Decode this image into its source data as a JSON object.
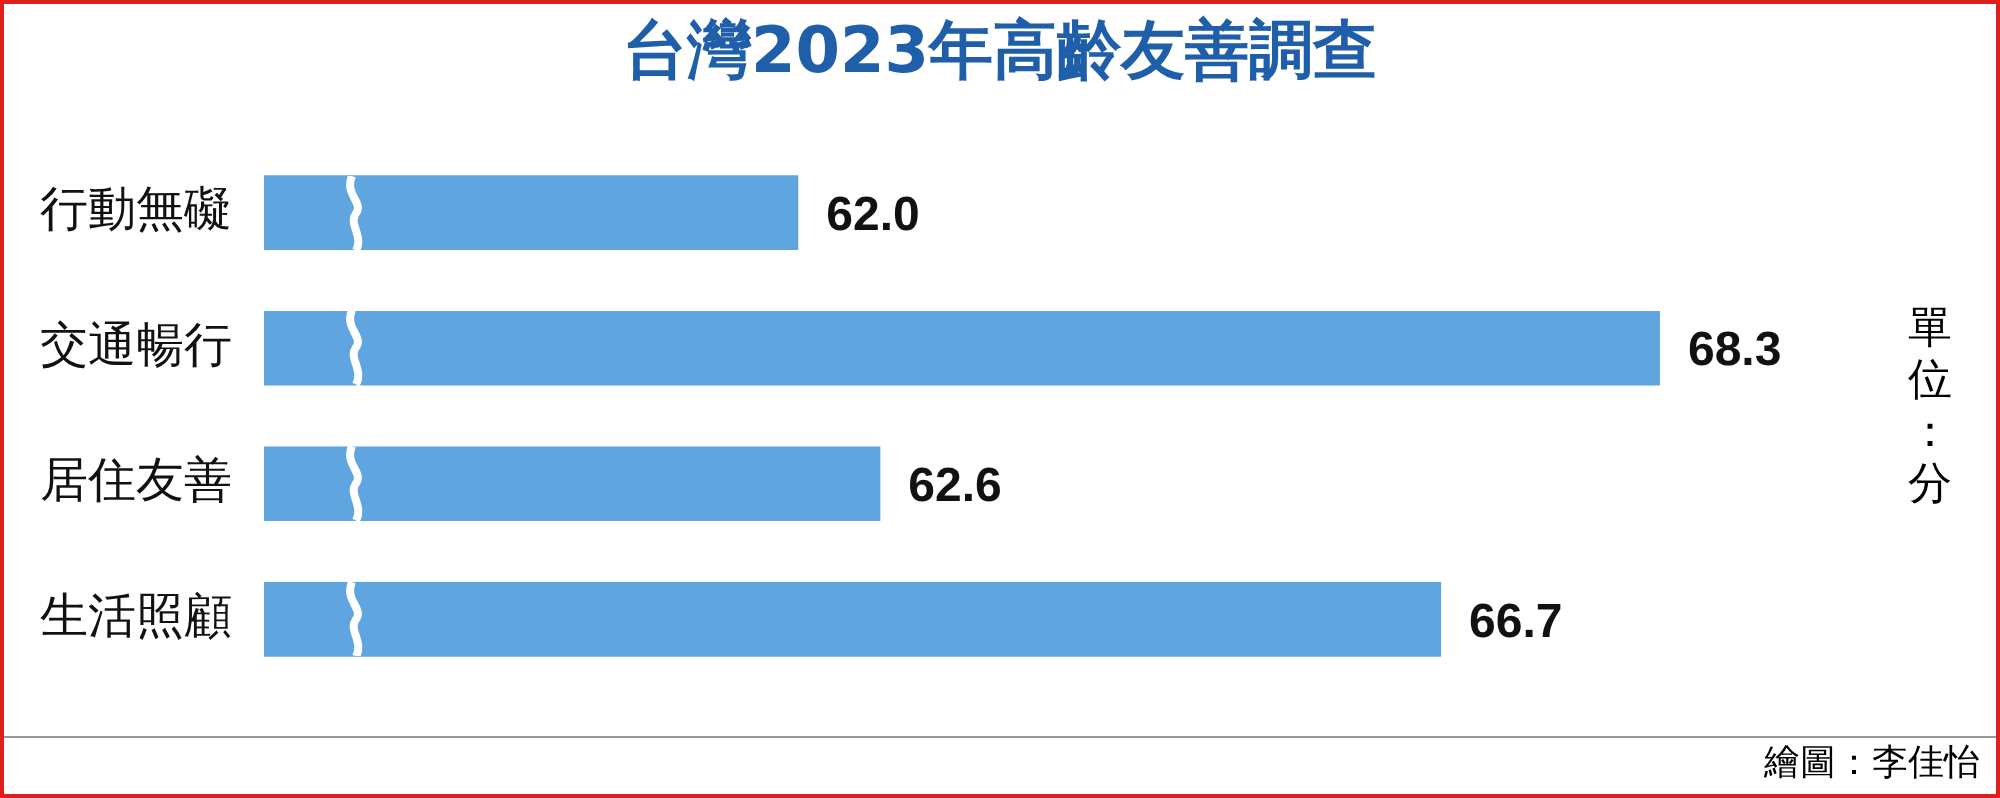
{
  "chart_data": {
    "type": "bar",
    "orientation": "horizontal",
    "title": "台灣2023年高齡友善調查",
    "categories": [
      "行動無礙",
      "交通暢行",
      "居住友善",
      "生活照顧"
    ],
    "values": [
      62.0,
      68.3,
      62.6,
      66.7
    ],
    "color": "#5fa6e0",
    "value_labels": [
      "62.0",
      "68.3",
      "62.6",
      "66.7"
    ],
    "legend": false,
    "annotations": [
      "單位：分",
      "繪圖：李佳怡"
    ]
  }
}
